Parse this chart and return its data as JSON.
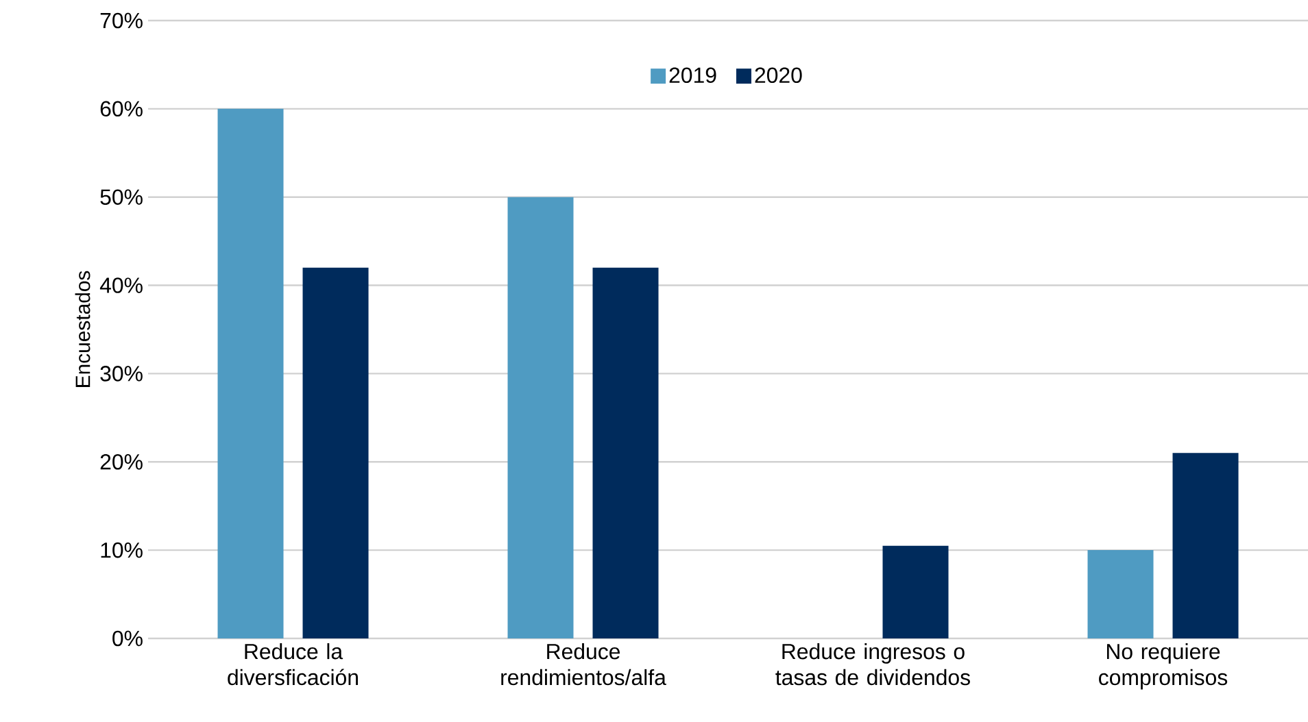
{
  "chart_data": {
    "type": "bar",
    "ylabel": "Encuestados",
    "categories": [
      "Reduce la diversficación",
      "Reduce rendimientos/alfa",
      "Reduce ingresos o tasas de dividendos",
      "No requiere compromisos"
    ],
    "series": [
      {
        "name": "2019",
        "color": "#4f9bc2",
        "values": [
          60,
          50,
          0,
          10
        ]
      },
      {
        "name": "2020",
        "color": "#002b5c",
        "values": [
          42,
          42,
          10.5,
          21
        ]
      }
    ],
    "ylim": [
      0,
      70
    ],
    "yticks": [
      {
        "value": 0,
        "label": "0%"
      },
      {
        "value": 10,
        "label": "10%"
      },
      {
        "value": 20,
        "label": "20%"
      },
      {
        "value": 30,
        "label": "30%"
      },
      {
        "value": 40,
        "label": "40%"
      },
      {
        "value": 50,
        "label": "50%"
      },
      {
        "value": 60,
        "label": "60%"
      },
      {
        "value": 70,
        "label": "70%"
      }
    ],
    "grid": "y",
    "legend": "top"
  }
}
